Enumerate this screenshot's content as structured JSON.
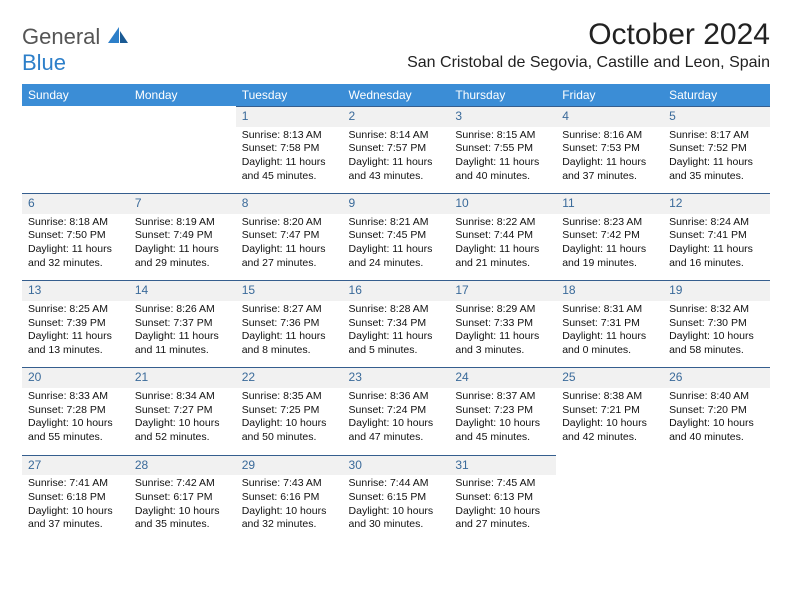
{
  "brand": {
    "line1": "General",
    "line2": "Blue",
    "color_gray": "#6a6a6a",
    "color_blue": "#2d7fc9"
  },
  "title": "October 2024",
  "location": "San Cristobal de Segovia, Castille and Leon, Spain",
  "header_bg": "#3b8dd6",
  "daynum_bg": "#f1f1f1",
  "daynum_color": "#3a6a9a",
  "daynum_border": "#355e8e",
  "weekdays": [
    "Sunday",
    "Monday",
    "Tuesday",
    "Wednesday",
    "Thursday",
    "Friday",
    "Saturday"
  ],
  "weeks": [
    [
      null,
      null,
      {
        "n": "1",
        "sr": "8:13 AM",
        "ss": "7:58 PM",
        "dl": "11 hours and 45 minutes."
      },
      {
        "n": "2",
        "sr": "8:14 AM",
        "ss": "7:57 PM",
        "dl": "11 hours and 43 minutes."
      },
      {
        "n": "3",
        "sr": "8:15 AM",
        "ss": "7:55 PM",
        "dl": "11 hours and 40 minutes."
      },
      {
        "n": "4",
        "sr": "8:16 AM",
        "ss": "7:53 PM",
        "dl": "11 hours and 37 minutes."
      },
      {
        "n": "5",
        "sr": "8:17 AM",
        "ss": "7:52 PM",
        "dl": "11 hours and 35 minutes."
      }
    ],
    [
      {
        "n": "6",
        "sr": "8:18 AM",
        "ss": "7:50 PM",
        "dl": "11 hours and 32 minutes."
      },
      {
        "n": "7",
        "sr": "8:19 AM",
        "ss": "7:49 PM",
        "dl": "11 hours and 29 minutes."
      },
      {
        "n": "8",
        "sr": "8:20 AM",
        "ss": "7:47 PM",
        "dl": "11 hours and 27 minutes."
      },
      {
        "n": "9",
        "sr": "8:21 AM",
        "ss": "7:45 PM",
        "dl": "11 hours and 24 minutes."
      },
      {
        "n": "10",
        "sr": "8:22 AM",
        "ss": "7:44 PM",
        "dl": "11 hours and 21 minutes."
      },
      {
        "n": "11",
        "sr": "8:23 AM",
        "ss": "7:42 PM",
        "dl": "11 hours and 19 minutes."
      },
      {
        "n": "12",
        "sr": "8:24 AM",
        "ss": "7:41 PM",
        "dl": "11 hours and 16 minutes."
      }
    ],
    [
      {
        "n": "13",
        "sr": "8:25 AM",
        "ss": "7:39 PM",
        "dl": "11 hours and 13 minutes."
      },
      {
        "n": "14",
        "sr": "8:26 AM",
        "ss": "7:37 PM",
        "dl": "11 hours and 11 minutes."
      },
      {
        "n": "15",
        "sr": "8:27 AM",
        "ss": "7:36 PM",
        "dl": "11 hours and 8 minutes."
      },
      {
        "n": "16",
        "sr": "8:28 AM",
        "ss": "7:34 PM",
        "dl": "11 hours and 5 minutes."
      },
      {
        "n": "17",
        "sr": "8:29 AM",
        "ss": "7:33 PM",
        "dl": "11 hours and 3 minutes."
      },
      {
        "n": "18",
        "sr": "8:31 AM",
        "ss": "7:31 PM",
        "dl": "11 hours and 0 minutes."
      },
      {
        "n": "19",
        "sr": "8:32 AM",
        "ss": "7:30 PM",
        "dl": "10 hours and 58 minutes."
      }
    ],
    [
      {
        "n": "20",
        "sr": "8:33 AM",
        "ss": "7:28 PM",
        "dl": "10 hours and 55 minutes."
      },
      {
        "n": "21",
        "sr": "8:34 AM",
        "ss": "7:27 PM",
        "dl": "10 hours and 52 minutes."
      },
      {
        "n": "22",
        "sr": "8:35 AM",
        "ss": "7:25 PM",
        "dl": "10 hours and 50 minutes."
      },
      {
        "n": "23",
        "sr": "8:36 AM",
        "ss": "7:24 PM",
        "dl": "10 hours and 47 minutes."
      },
      {
        "n": "24",
        "sr": "8:37 AM",
        "ss": "7:23 PM",
        "dl": "10 hours and 45 minutes."
      },
      {
        "n": "25",
        "sr": "8:38 AM",
        "ss": "7:21 PM",
        "dl": "10 hours and 42 minutes."
      },
      {
        "n": "26",
        "sr": "8:40 AM",
        "ss": "7:20 PM",
        "dl": "10 hours and 40 minutes."
      }
    ],
    [
      {
        "n": "27",
        "sr": "7:41 AM",
        "ss": "6:18 PM",
        "dl": "10 hours and 37 minutes."
      },
      {
        "n": "28",
        "sr": "7:42 AM",
        "ss": "6:17 PM",
        "dl": "10 hours and 35 minutes."
      },
      {
        "n": "29",
        "sr": "7:43 AM",
        "ss": "6:16 PM",
        "dl": "10 hours and 32 minutes."
      },
      {
        "n": "30",
        "sr": "7:44 AM",
        "ss": "6:15 PM",
        "dl": "10 hours and 30 minutes."
      },
      {
        "n": "31",
        "sr": "7:45 AM",
        "ss": "6:13 PM",
        "dl": "10 hours and 27 minutes."
      },
      null,
      null
    ]
  ],
  "labels": {
    "sunrise": "Sunrise: ",
    "sunset": "Sunset: ",
    "daylight": "Daylight: "
  }
}
